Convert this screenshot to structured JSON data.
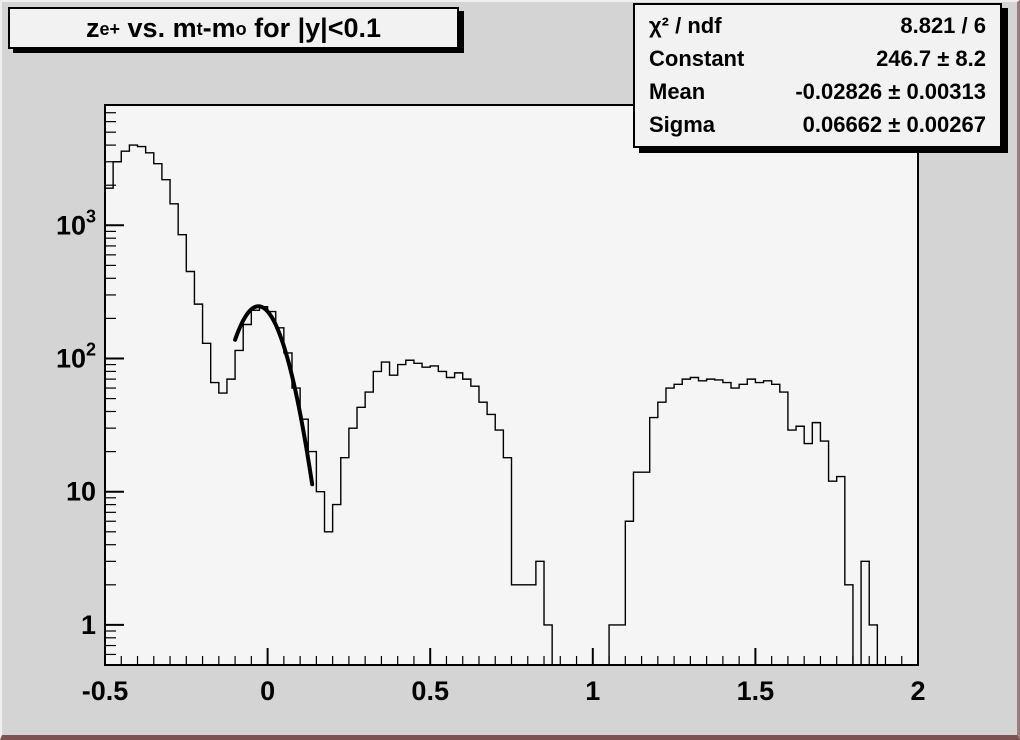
{
  "window": {
    "canvas_bg": "#d4d4d4",
    "frame_bg": "#f5f5f5",
    "box_bg": "#f2f2f2",
    "line_color": "#000000"
  },
  "title_box": {
    "segments": [
      {
        "t": "z"
      },
      {
        "t": "e+",
        "sub": true
      },
      {
        "t": " vs. m"
      },
      {
        "t": "t",
        "sub": true
      },
      {
        "t": "-m"
      },
      {
        "t": "o",
        "sub": true
      },
      {
        "t": " for |y|<0.1"
      }
    ]
  },
  "stats_box": {
    "rows": [
      {
        "label": "χ² / ndf",
        "value": "8.821 / 6"
      },
      {
        "label": "Constant",
        "value": "246.7 ± 8.2"
      },
      {
        "label": "Mean",
        "value": "-0.02826 ± 0.00313"
      },
      {
        "label": "Sigma",
        "value": "0.06662 ± 0.00267"
      }
    ]
  },
  "chart_data": {
    "type": "bar",
    "subtype": "step-histogram-log-y",
    "title": "z_e+ vs. m_t-m_o for |y|<0.1",
    "xlabel": "",
    "ylabel": "",
    "x_start": -0.5,
    "bin_width": 0.025,
    "n_bins": 100,
    "values": [
      1900,
      3000,
      3600,
      4000,
      3900,
      3500,
      2900,
      2200,
      1450,
      850,
      450,
      256,
      130,
      66,
      55,
      70,
      115,
      180,
      230,
      245,
      225,
      170,
      110,
      60,
      35,
      20,
      10,
      5,
      8,
      18,
      30,
      43,
      56,
      80,
      94,
      75,
      90,
      97,
      92,
      86,
      88,
      80,
      72,
      78,
      70,
      62,
      47,
      38,
      29,
      18,
      2,
      2,
      2,
      3,
      1,
      0,
      0,
      0,
      0,
      0,
      0,
      0,
      1,
      1,
      6,
      14,
      14,
      36,
      47,
      60,
      64,
      70,
      72,
      68,
      70,
      69,
      66,
      60,
      64,
      70,
      66,
      68,
      64,
      56,
      29,
      31,
      23,
      33,
      24,
      12,
      13,
      2,
      0,
      3,
      1,
      0,
      0,
      0,
      0,
      0
    ],
    "x_axis": {
      "min": -0.5,
      "max": 2.0,
      "major_step": 0.5,
      "minor_step": 0.05,
      "tick_labels": [
        {
          "x": -0.5,
          "text": "-0.5"
        },
        {
          "x": 0,
          "text": "0"
        },
        {
          "x": 0.5,
          "text": "0.5"
        },
        {
          "x": 1,
          "text": "1"
        },
        {
          "x": 1.5,
          "text": "1.5"
        },
        {
          "x": 2,
          "text": "2"
        }
      ]
    },
    "y_axis": {
      "scale": "log",
      "min": 0.5,
      "max": 8000,
      "grid": false,
      "decade_labels": [
        {
          "value": 1,
          "base": "1",
          "exp": ""
        },
        {
          "value": 10,
          "base": "10",
          "exp": ""
        },
        {
          "value": 100,
          "base": "10",
          "exp": "2"
        },
        {
          "value": 1000,
          "base": "10",
          "exp": "3"
        }
      ]
    },
    "fit": {
      "type": "gaussian",
      "constant": 246.7,
      "mean": -0.02826,
      "sigma": 0.06662,
      "draw_range": [
        -0.1,
        0.137
      ],
      "chi2": 8.821,
      "ndf": 6
    },
    "legend_position": "none"
  }
}
